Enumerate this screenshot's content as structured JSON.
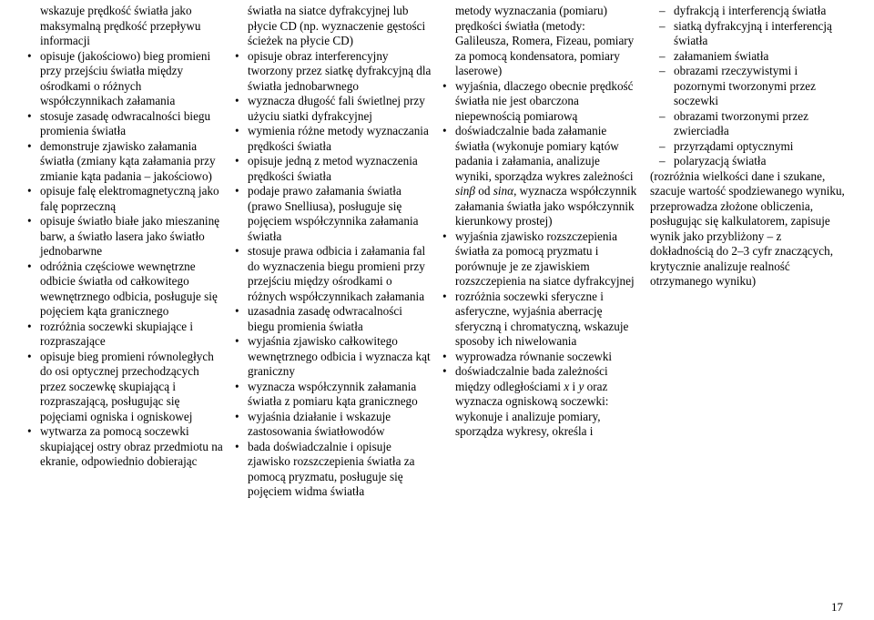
{
  "col1": {
    "cont": "wskazuje prędkość światła jako maksymalną prędkość przepływu informacji",
    "items": [
      "opisuje (jakościowo) bieg promieni przy przejściu światła między ośrodkami o różnych współczynnikach załamania",
      "stosuje zasadę odwracalności biegu promienia światła",
      "demonstruje zjawisko załamania światła (zmiany kąta załamania przy zmianie kąta padania – jakościowo)",
      "opisuje falę elektromagnetyczną jako falę poprzeczną",
      "opisuje światło białe jako mieszaninę barw, a światło lasera jako światło jednobarwne",
      "odróżnia częściowe wewnętrzne odbicie światła od całkowitego wewnętrznego odbicia, posługuje się pojęciem kąta granicznego",
      "rozróżnia soczewki skupiające i rozpraszające",
      "opisuje bieg promieni równoległych do osi optycznej przechodzących przez soczewkę skupiającą i rozpraszającą, posługując się pojęciami ogniska i ogniskowej",
      "wytwarza za pomocą soczewki skupiającej ostry obraz przedmiotu na ekranie, odpowiednio dobierając"
    ]
  },
  "col2": {
    "cont": "światła na siatce dyfrakcyjnej lub płycie CD (np. wyznaczenie gęstości ścieżek na płycie CD)",
    "items": [
      "opisuje obraz interferencyjny tworzony przez siatkę dyfrakcyjną dla światła jednobarwnego",
      "wyznacza długość fali świetlnej przy użyciu siatki dyfrakcyjnej",
      "wymienia różne metody wyznaczania prędkości światła",
      "opisuje jedną z metod wyznaczenia prędkości światła",
      "podaje prawo załamania światła (prawo Snelliusa), posługuje się pojęciem współczynnika załamania światła",
      "stosuje prawa odbicia i załamania fal do wyznaczenia biegu promieni przy przejściu między ośrodkami o różnych współczynnikach załamania",
      "uzasadnia zasadę odwracalności biegu promienia światła",
      "wyjaśnia zjawisko całkowitego wewnętrznego odbicia i wyznacza kąt graniczny",
      "wyznacza współczynnik załamania światła z pomiaru kąta granicznego",
      "wyjaśnia działanie i wskazuje zastosowania światłowodów",
      "bada doświadczalnie i opisuje zjawisko rozszczepienia światła za pomocą pryzmatu, posługuje się pojęciem widma światła"
    ]
  },
  "col3": {
    "cont": "metody wyznaczania (pomiaru) prędkości światła (metody: Galileusza, Romera, Fizeau, pomiary za pomocą kondensatora, pomiary laserowe)",
    "items": [
      "wyjaśnia, dlaczego obecnie prędkość światła nie jest obarczona niepewnością pomiarową",
      "doświadczalnie bada załamanie światła (wykonuje pomiary kątów padania i załamania, analizuje wyniki, sporządza wykres zależności sinβ od sinα, wyznacza współczynnik załamania światła jako współczynnik kierunkowy prostej)",
      "wyjaśnia zjawisko rozszczepienia światła za pomocą pryzmatu i porównuje je ze zjawiskiem rozszczepienia na siatce dyfrakcyjnej",
      "rozróżnia soczewki sferyczne i asferyczne, wyjaśnia aberrację sferyczną i chromatyczną, wskazuje sposoby ich niwelowania",
      "wyprowadza równanie soczewki",
      "doświadczalnie bada zależności między odległościami x i y oraz wyznacza ogniskową soczewki: wykonuje i analizuje pomiary, sporządza wykresy, określa i"
    ]
  },
  "col4": {
    "dashes": [
      "dyfrakcją i interferencją światła",
      "siatką dyfrakcyjną i interferencją światła",
      "załamaniem światła",
      "obrazami rzeczywistymi i pozornymi tworzonymi przez soczewki",
      "obrazami tworzonymi przez zwierciadła",
      "przyrządami optycznymi",
      "polaryzacją światła"
    ],
    "paren": "(rozróżnia wielkości dane i szukane, szacuje wartość spodziewanego wyniku, przeprowadza złożone obliczenia, posługując się kalkulatorem, zapisuje wynik jako przybliżony – z dokładnością do 2–3 cyfr znaczących, krytycznie analizuje realność otrzymanego wyniku)"
  },
  "pageNumber": "17",
  "italic_pairs": [
    [
      "sinβ",
      "sinα"
    ],
    [
      "x",
      "y"
    ]
  ]
}
